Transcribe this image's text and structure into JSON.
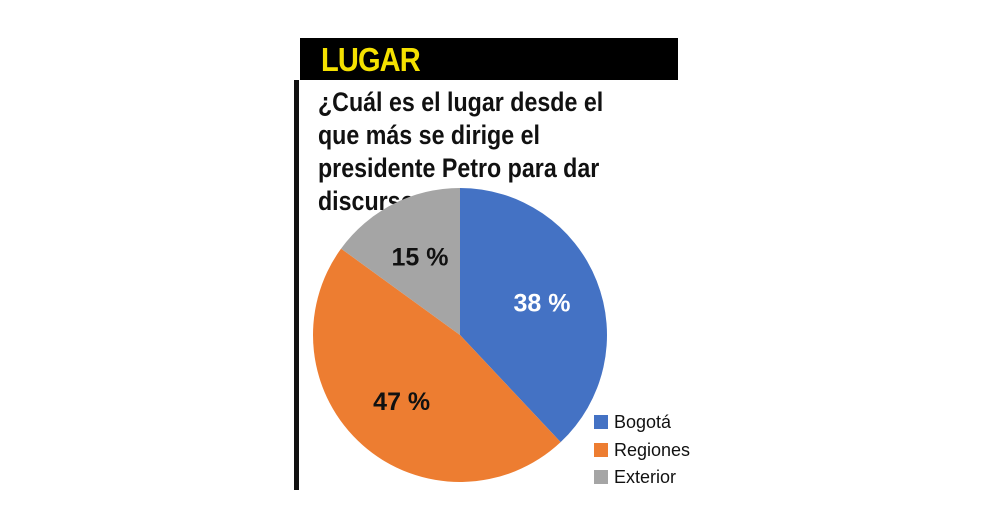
{
  "header": {
    "label": "LUGAR"
  },
  "chart_data": {
    "type": "pie",
    "title": "¿Cuál es el lugar desde el que más se dirige el presidente Petro para dar discursos?",
    "categories": [
      "Bogotá",
      "Regiones",
      "Exterior"
    ],
    "values": [
      38,
      47,
      15
    ],
    "labels": [
      "38 %",
      "47 %",
      "15 %"
    ],
    "colors": [
      "#4472c4",
      "#ed7d31",
      "#a5a5a5"
    ],
    "label_colors": [
      "#ffffff",
      "#111111",
      "#111111"
    ],
    "legend_position": "bottom-right"
  }
}
